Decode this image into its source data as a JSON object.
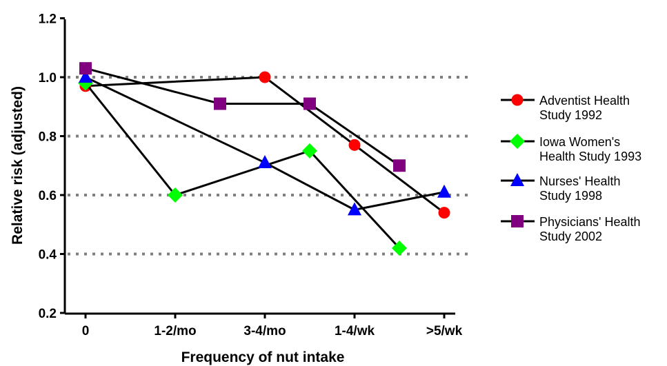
{
  "chart_data": {
    "type": "line",
    "xlabel": "Frequency of nut intake",
    "ylabel": "Relative risk (adjusted)",
    "ylim": [
      0.2,
      1.2
    ],
    "yticks": [
      "0.2",
      "0.4",
      "0.6",
      "0.8",
      "1.0",
      "1.2"
    ],
    "categories": [
      "0",
      "1-2/mo",
      "3-4/mo",
      "1-4/wk",
      ">5/wk"
    ],
    "gridlines": [
      0.4,
      0.6,
      0.8,
      1.0
    ],
    "legend_position": "right",
    "series": [
      {
        "name_lines": [
          "Adventist Health",
          "Study 1992"
        ],
        "color": "#ff0000",
        "marker": "circle",
        "points": [
          [
            0,
            0.97
          ],
          [
            2,
            1.0
          ],
          [
            3,
            0.77
          ],
          [
            4,
            0.54
          ]
        ]
      },
      {
        "name_lines": [
          "Iowa Women's",
          "Health Study 1993"
        ],
        "color": "#00ff00",
        "marker": "diamond",
        "points": [
          [
            0,
            0.98
          ],
          [
            1,
            0.6
          ],
          [
            2.5,
            0.75
          ],
          [
            3.5,
            0.42
          ]
        ]
      },
      {
        "name_lines": [
          "Nurses' Health",
          "Study 1998"
        ],
        "color": "#0000ff",
        "marker": "triangle",
        "points": [
          [
            0,
            1.0
          ],
          [
            2,
            0.71
          ],
          [
            3,
            0.55
          ],
          [
            4,
            0.61
          ]
        ]
      },
      {
        "name_lines": [
          "Physicians' Health",
          "Study 2002"
        ],
        "color": "#800080",
        "marker": "square",
        "points": [
          [
            0,
            1.03
          ],
          [
            1.5,
            0.91
          ],
          [
            2.5,
            0.91
          ],
          [
            3.5,
            0.7
          ]
        ]
      }
    ]
  }
}
